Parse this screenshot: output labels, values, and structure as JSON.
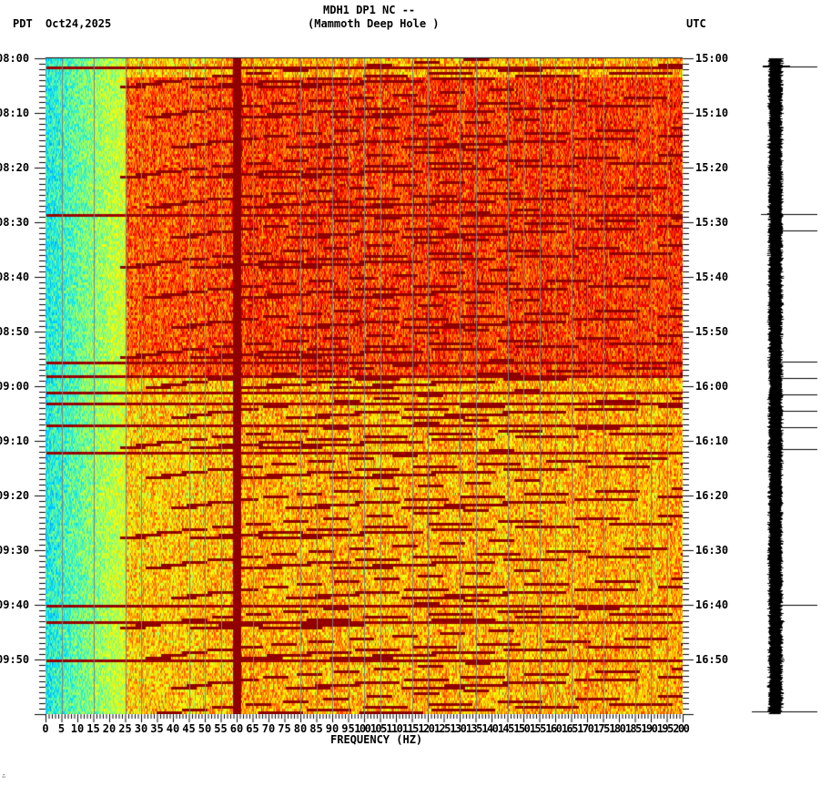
{
  "header": {
    "station_line": "MDH1 DP1 NC --",
    "station_name": "(Mammoth Deep Hole )",
    "left_timezone": "PDT",
    "date": "Oct24,2025",
    "right_timezone": "UTC"
  },
  "footer_mark": "∴",
  "chart_data": {
    "type": "heatmap",
    "title": "MDH1 DP1 NC -- (Mammoth Deep Hole )",
    "subtitle": "Oct24,2025",
    "xlabel": "FREQUENCY (HZ)",
    "ylabel_left": "PDT",
    "ylabel_right": "UTC",
    "x_range": [
      0,
      200
    ],
    "x_ticks": [
      0,
      5,
      10,
      15,
      20,
      25,
      30,
      35,
      40,
      45,
      50,
      55,
      60,
      65,
      70,
      75,
      80,
      85,
      90,
      95,
      100,
      105,
      110,
      115,
      120,
      125,
      130,
      135,
      140,
      145,
      150,
      155,
      160,
      165,
      170,
      175,
      180,
      185,
      190,
      195,
      200
    ],
    "x_tick_labels": [
      "0",
      "5",
      "10",
      "15",
      "20",
      "25",
      "30",
      "35",
      "40",
      "45",
      "50",
      "55",
      "60",
      "65",
      "70",
      "75",
      "80",
      "85",
      "90",
      "95",
      "100",
      "105",
      "110",
      "115",
      "120",
      "125",
      "130",
      "135",
      "140",
      "145",
      "150",
      "155",
      "160",
      "165",
      "170",
      "175",
      "180",
      "185",
      "190",
      "195",
      "200"
    ],
    "y_ticks_left": [
      "08:00",
      "08:10",
      "08:20",
      "08:30",
      "08:40",
      "08:50",
      "09:00",
      "09:10",
      "09:20",
      "09:30",
      "09:40",
      "09:50"
    ],
    "y_ticks_right": [
      "15:00",
      "15:10",
      "15:20",
      "15:30",
      "15:40",
      "15:50",
      "16:00",
      "16:10",
      "16:20",
      "16:30",
      "16:40",
      "16:50"
    ],
    "y_range_minutes": [
      0,
      120
    ],
    "minor_tick_minutes": 1,
    "colormap": [
      "#0060ff",
      "#00e0ff",
      "#80ff80",
      "#ffff00",
      "#ff8000",
      "#ff0000",
      "#800000"
    ],
    "persistent_line_hz": 60,
    "gray_gridline_spacing_hz": 15,
    "features": {
      "low_freq_quiet_band_hz": [
        0,
        25
      ],
      "high_energy_region_hz": [
        25,
        200
      ],
      "upper_half_red_region_minutes": [
        4,
        58
      ],
      "lower_half_yellow_region_minutes": [
        62,
        120
      ],
      "broadband_bursts_minutes": [
        1.5,
        28.5,
        55.5,
        58,
        61,
        63,
        67,
        72,
        100,
        103,
        110
      ],
      "chirp_sweeps": "repeating downward-curving dark-red frequency glides, period ~5-6 min"
    },
    "seismogram": {
      "color": "#000000",
      "spikes_minutes": [
        1.5,
        28.5,
        31.5,
        55.5,
        58.5,
        61.5,
        64.5,
        67.5,
        71.5,
        100,
        103,
        110,
        119.5
      ]
    }
  }
}
